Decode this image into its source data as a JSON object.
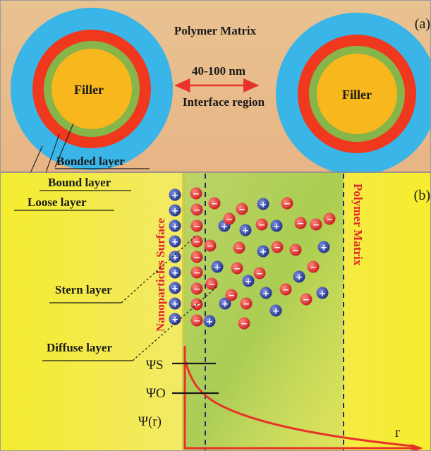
{
  "panel_a": {
    "panel_label": "(a)",
    "matrix_label": "Polymer Matrix",
    "distance_label": "40-100 nm",
    "region_label": "Interface region",
    "particles": [
      {
        "label": "Filler"
      },
      {
        "label": "Filler"
      }
    ],
    "layers": [
      {
        "label": "Bonded layer",
        "color": "#f0381f"
      },
      {
        "label": "Bound layer",
        "color": "#86b549"
      },
      {
        "label": "Loose layer",
        "color": "#3ab5e8"
      }
    ],
    "colors": {
      "filler": "#f8b71c",
      "background": "#ecc08e",
      "arrow": "#e8332a"
    }
  },
  "panel_b": {
    "panel_label": "(b)",
    "surface_label": "Nanoparticles Surface",
    "matrix_label": "Polymer Matrix",
    "stern_label": "Stern layer",
    "diffuse_label": "Diffuse layer",
    "potential_labels": [
      "ΨS",
      "ΨO",
      "Ψ(r)"
    ],
    "axis_label": "r",
    "ion_symbols": {
      "positive": "+",
      "negative": "−"
    },
    "colors": {
      "positive_ion": "#2d3f9a",
      "negative_ion": "#e0252a",
      "curve": "#e8332a",
      "background": "#f6e53a",
      "region": "#9cc24a"
    }
  }
}
